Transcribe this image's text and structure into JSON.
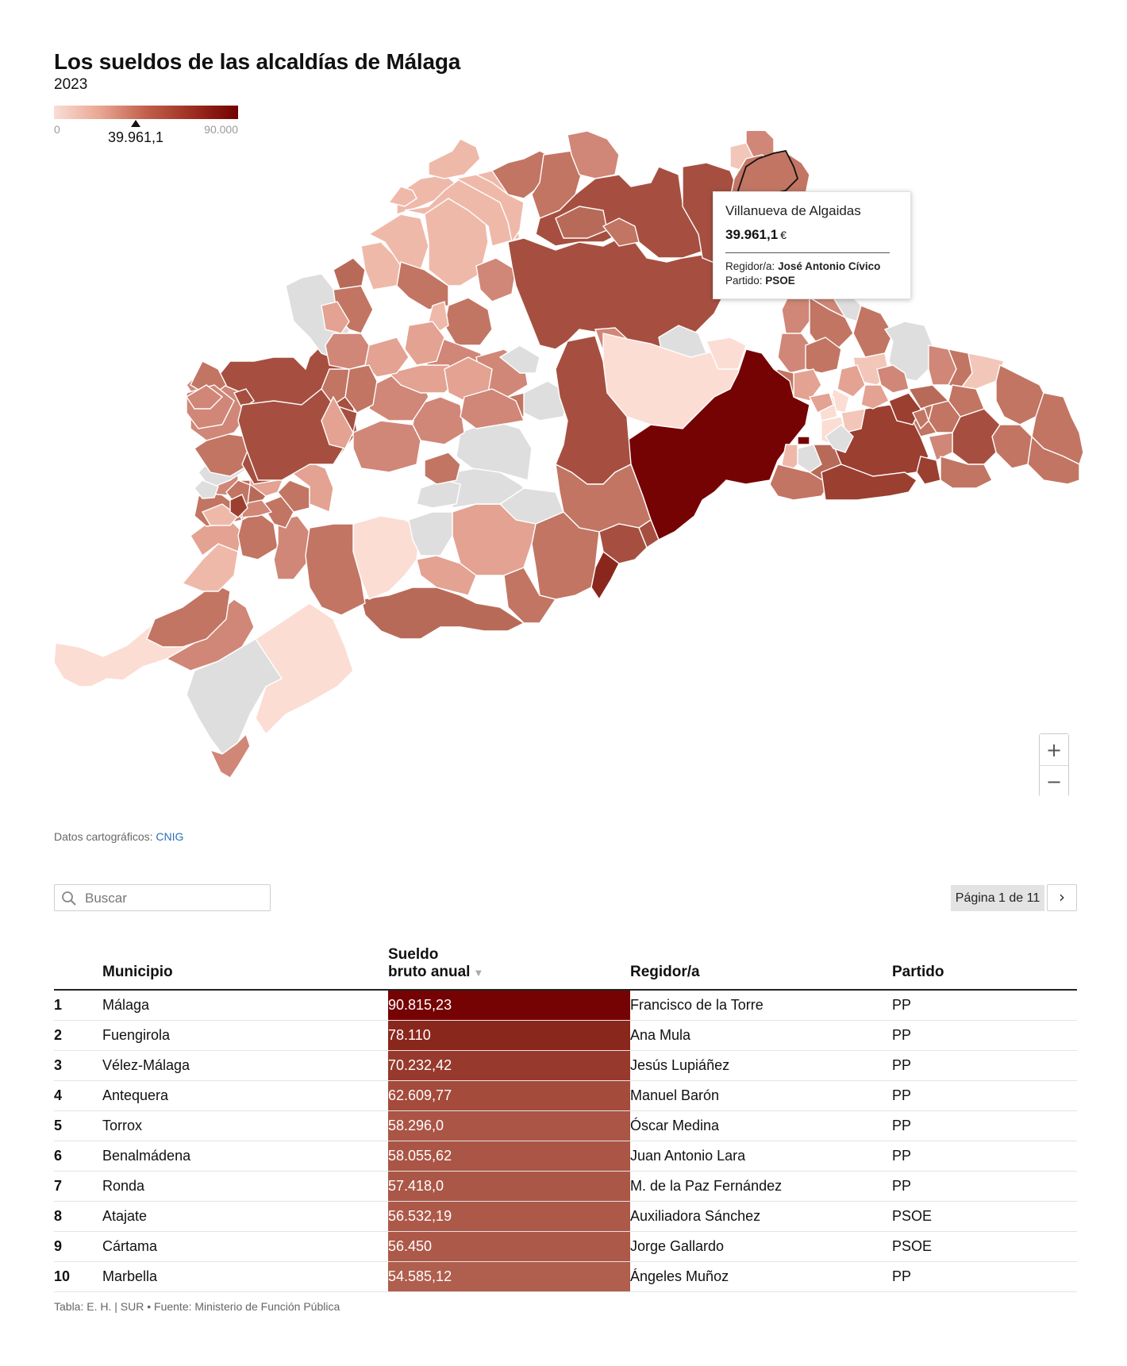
{
  "header": {
    "title": "Los sueldos de las alcaldías de Málaga",
    "subtitle": "2023"
  },
  "legend": {
    "min_label": "0",
    "max_label": "90.000",
    "current_label": "39.961,1",
    "min": 0,
    "max": 90000,
    "current": 39961.1
  },
  "tooltip": {
    "name": "Villanueva de Algaidas",
    "value": "39.961,1",
    "unit": "€",
    "mayor_label": "Regidor/a:",
    "mayor": "José Antonio Cívico",
    "party_label": "Partido:",
    "party": "PSOE"
  },
  "zoom": {
    "in_label": "+",
    "out_label": "−"
  },
  "credit": {
    "prefix": "Datos cartográficos:",
    "link": "CNIG"
  },
  "search": {
    "placeholder": "Buscar"
  },
  "pager": {
    "label": "Página 1 de 11",
    "next": "›"
  },
  "table": {
    "headers": {
      "municipio": "Municipio",
      "sueldo_line1": "Sueldo",
      "sueldo_line2": "bruto anual",
      "sort_arrow": "▼",
      "regidor": "Regidor/a",
      "partido": "Partido"
    },
    "rows": [
      {
        "rank": "1",
        "municipio": "Málaga",
        "sueldo": "90.815,23",
        "regidor": "Francisco de la Torre",
        "partido": "PP",
        "color": "#760304"
      },
      {
        "rank": "2",
        "municipio": "Fuengirola",
        "sueldo": "78.110",
        "regidor": "Ana Mula",
        "partido": "PP",
        "color": "#8a271d"
      },
      {
        "rank": "3",
        "municipio": "Vélez-Málaga",
        "sueldo": "70.232,42",
        "regidor": "Jesús Lupiáñez",
        "partido": "PP",
        "color": "#973a2d"
      },
      {
        "rank": "4",
        "municipio": "Antequera",
        "sueldo": "62.609,77",
        "regidor": "Manuel Barón",
        "partido": "PP",
        "color": "#a44b3c"
      },
      {
        "rank": "5",
        "municipio": "Torrox",
        "sueldo": "58.296,0",
        "regidor": "Óscar Medina",
        "partido": "PP",
        "color": "#aa5545"
      },
      {
        "rank": "6",
        "municipio": "Benalmádena",
        "sueldo": "58.055,62",
        "regidor": "Juan Antonio Lara",
        "partido": "PP",
        "color": "#aa5545"
      },
      {
        "rank": "7",
        "municipio": "Ronda",
        "sueldo": "57.418,0",
        "regidor": "M. de la Paz Fernández",
        "partido": "PP",
        "color": "#ab5747"
      },
      {
        "rank": "8",
        "municipio": "Atajate",
        "sueldo": "56.532,19",
        "regidor": "Auxiliadora Sánchez",
        "partido": "PSOE",
        "color": "#ad5949"
      },
      {
        "rank": "9",
        "municipio": "Cártama",
        "sueldo": "56.450",
        "regidor": "Jorge Gallardo",
        "partido": "PSOE",
        "color": "#ad5949"
      },
      {
        "rank": "10",
        "municipio": "Marbella",
        "sueldo": "54.585,12",
        "regidor": "Ángeles Muñoz",
        "partido": "PP",
        "color": "#b05e4d"
      }
    ]
  },
  "footer": "Tabla: E. H. | SUR • Fuente: Ministerio de Función Pública",
  "colors": {
    "nodata": "#dedede",
    "c1": "#fbddd4",
    "c2": "#efb9aa",
    "c3": "#e3a292",
    "c4": "#d08777",
    "c5": "#c27563",
    "c6": "#b86a59",
    "c7": "#a64f40",
    "c8": "#9b3f31",
    "c9": "#760304"
  }
}
